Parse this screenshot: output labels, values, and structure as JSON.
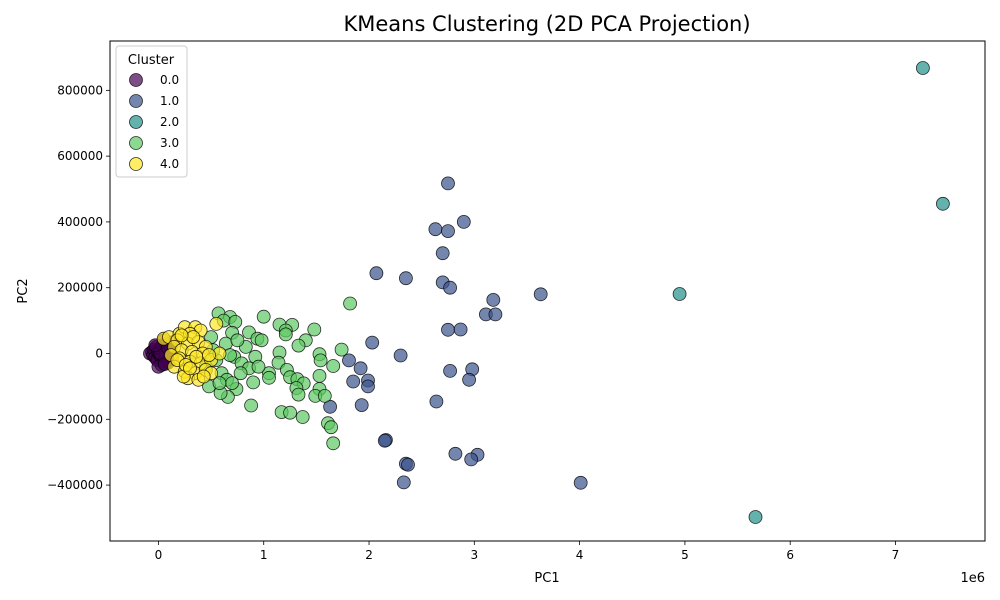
{
  "chart_data": {
    "type": "scatter",
    "title": "KMeans Clustering (2D PCA Projection)",
    "xlabel": "PC1",
    "ylabel": "PC2",
    "x_offset_label": "1e6",
    "xlim": [
      -0.46,
      7.85
    ],
    "ylim": [
      -570000,
      950000
    ],
    "x_unit_note": "x values in units of 1e6",
    "x_ticks": [
      0,
      1,
      2,
      3,
      4,
      5,
      6,
      7
    ],
    "x_tick_labels": [
      "0",
      "1",
      "2",
      "3",
      "4",
      "5",
      "6",
      "7"
    ],
    "y_ticks": [
      -400000,
      -200000,
      0,
      200000,
      400000,
      600000,
      800000
    ],
    "y_tick_labels": [
      "−400000",
      "−200000",
      "0",
      "200000",
      "400000",
      "600000",
      "800000"
    ],
    "grid": false,
    "legend": {
      "title": "Cluster",
      "placement": "top-left"
    },
    "series": [
      {
        "name": "0.0",
        "color": "#440154",
        "points": [
          [
            -0.08,
            0
          ],
          [
            -0.06,
            5000
          ],
          [
            -0.05,
            -5000
          ],
          [
            -0.04,
            12000
          ],
          [
            -0.03,
            -12000
          ],
          [
            -0.02,
            20000
          ],
          [
            -0.01,
            -20000
          ],
          [
            0,
            3000
          ],
          [
            0.01,
            -3000
          ],
          [
            0.02,
            15000
          ],
          [
            0.03,
            -15000
          ],
          [
            0.04,
            25000
          ],
          [
            0.05,
            -25000
          ],
          [
            0.06,
            8000
          ],
          [
            0.07,
            -8000
          ],
          [
            0.08,
            30000
          ],
          [
            0.09,
            -28000
          ],
          [
            0.1,
            10000
          ],
          [
            0.11,
            -10000
          ],
          [
            0.12,
            22000
          ],
          [
            0.13,
            -18000
          ],
          [
            0.14,
            35000
          ],
          [
            0.05,
            40000
          ],
          [
            0.03,
            -35000
          ],
          [
            0.0,
            -40000
          ],
          [
            0.02,
            0
          ],
          [
            -0.03,
            25000
          ],
          [
            0.06,
            -32000
          ],
          [
            0.09,
            18000
          ],
          [
            0.12,
            -5000
          ]
        ]
      },
      {
        "name": "1.0",
        "color": "#3b528b",
        "points": [
          [
            2.75,
            517000
          ],
          [
            2.63,
            378000
          ],
          [
            2.75,
            372000
          ],
          [
            2.9,
            400000
          ],
          [
            2.7,
            305000
          ],
          [
            2.07,
            244000
          ],
          [
            2.35,
            229000
          ],
          [
            2.7,
            216000
          ],
          [
            2.77,
            200000
          ],
          [
            3.18,
            163000
          ],
          [
            3.63,
            180000
          ],
          [
            3.11,
            119000
          ],
          [
            3.2,
            119000
          ],
          [
            2.75,
            72000
          ],
          [
            2.87,
            73000
          ],
          [
            2.03,
            33000
          ],
          [
            2.3,
            -6000
          ],
          [
            1.81,
            -21000
          ],
          [
            1.92,
            -45000
          ],
          [
            2.77,
            -53000
          ],
          [
            2.98,
            -48000
          ],
          [
            1.85,
            -85000
          ],
          [
            1.99,
            -82000
          ],
          [
            1.99,
            -100000
          ],
          [
            2.95,
            -80000
          ],
          [
            1.93,
            -157000
          ],
          [
            1.63,
            -162000
          ],
          [
            2.64,
            -146000
          ],
          [
            2.16,
            -263000
          ],
          [
            2.15,
            -265000
          ],
          [
            2.82,
            -305000
          ],
          [
            3.03,
            -308000
          ],
          [
            2.97,
            -322000
          ],
          [
            2.35,
            -335000
          ],
          [
            2.37,
            -338000
          ],
          [
            2.33,
            -392000
          ],
          [
            4.01,
            -393000
          ]
        ]
      },
      {
        "name": "2.0",
        "color": "#21918c",
        "points": [
          [
            7.26,
            868000
          ],
          [
            7.45,
            455000
          ],
          [
            4.95,
            181000
          ],
          [
            5.67,
            -497000
          ]
        ]
      },
      {
        "name": "3.0",
        "color": "#5ec962",
        "points": [
          [
            0.57,
            122000
          ],
          [
            0.68,
            111000
          ],
          [
            1.0,
            112000
          ],
          [
            0.62,
            100000
          ],
          [
            0.73,
            96000
          ],
          [
            1.15,
            88000
          ],
          [
            1.27,
            87000
          ],
          [
            1.21,
            70000
          ],
          [
            1.21,
            58000
          ],
          [
            0.86,
            64000
          ],
          [
            0.7,
            63000
          ],
          [
            1.48,
            73000
          ],
          [
            0.94,
            45000
          ],
          [
            0.98,
            40000
          ],
          [
            1.4,
            40000
          ],
          [
            0.5,
            50000
          ],
          [
            1.33,
            24000
          ],
          [
            1.74,
            12000
          ],
          [
            0.64,
            30000
          ],
          [
            0.83,
            20000
          ],
          [
            1.15,
            3000
          ],
          [
            1.53,
            -2000
          ],
          [
            1.54,
            -21000
          ],
          [
            1.66,
            -38000
          ],
          [
            1.14,
            -28000
          ],
          [
            0.72,
            -10000
          ],
          [
            0.79,
            -30000
          ],
          [
            0.86,
            -45000
          ],
          [
            1.05,
            -60000
          ],
          [
            1.05,
            -74000
          ],
          [
            1.22,
            -50000
          ],
          [
            1.25,
            -72000
          ],
          [
            1.32,
            -78000
          ],
          [
            1.38,
            -91000
          ],
          [
            1.53,
            -68000
          ],
          [
            1.31,
            -105000
          ],
          [
            1.33,
            -125000
          ],
          [
            1.53,
            -108000
          ],
          [
            1.49,
            -129000
          ],
          [
            1.58,
            -129000
          ],
          [
            0.9,
            -88000
          ],
          [
            0.74,
            -108000
          ],
          [
            0.66,
            -132000
          ],
          [
            0.59,
            -120000
          ],
          [
            0.48,
            -100000
          ],
          [
            0.88,
            -158000
          ],
          [
            1.17,
            -178000
          ],
          [
            1.25,
            -180000
          ],
          [
            1.37,
            -193000
          ],
          [
            1.61,
            -212000
          ],
          [
            1.64,
            -224000
          ],
          [
            1.66,
            -273000
          ],
          [
            1.82,
            152000
          ],
          [
            0.55,
            -20000
          ],
          [
            0.6,
            -60000
          ],
          [
            0.45,
            -40000
          ],
          [
            0.52,
            10000
          ],
          [
            0.65,
            -80000
          ],
          [
            0.7,
            -90000
          ],
          [
            0.78,
            -60000
          ],
          [
            0.92,
            -10000
          ],
          [
            0.95,
            -40000
          ],
          [
            0.58,
            -90000
          ],
          [
            0.75,
            40000
          ],
          [
            0.68,
            -5000
          ]
        ]
      },
      {
        "name": "4.0",
        "color": "#fde725",
        "points": [
          [
            0.05,
            45000
          ],
          [
            0.1,
            50000
          ],
          [
            0.2,
            60000
          ],
          [
            0.25,
            80000
          ],
          [
            0.35,
            80000
          ],
          [
            0.4,
            70000
          ],
          [
            0.3,
            60000
          ],
          [
            0.18,
            40000
          ],
          [
            0.28,
            30000
          ],
          [
            0.38,
            35000
          ],
          [
            0.45,
            20000
          ],
          [
            0.15,
            20000
          ],
          [
            0.22,
            10000
          ],
          [
            0.32,
            5000
          ],
          [
            0.42,
            0
          ],
          [
            0.12,
            -5000
          ],
          [
            0.2,
            -15000
          ],
          [
            0.3,
            -25000
          ],
          [
            0.4,
            -30000
          ],
          [
            0.5,
            -20000
          ],
          [
            0.15,
            -40000
          ],
          [
            0.25,
            -55000
          ],
          [
            0.35,
            -60000
          ],
          [
            0.45,
            -50000
          ],
          [
            0.28,
            -75000
          ],
          [
            0.38,
            -80000
          ],
          [
            0.24,
            -70000
          ],
          [
            0.55,
            90000
          ],
          [
            0.58,
            0
          ],
          [
            0.5,
            -60000
          ],
          [
            0.33,
            50000
          ],
          [
            0.43,
            -70000
          ],
          [
            0.18,
            -20000
          ],
          [
            0.26,
            -35000
          ],
          [
            0.36,
            -10000
          ],
          [
            0.48,
            -5000
          ],
          [
            0.22,
            55000
          ],
          [
            0.3,
            -45000
          ]
        ]
      }
    ]
  }
}
